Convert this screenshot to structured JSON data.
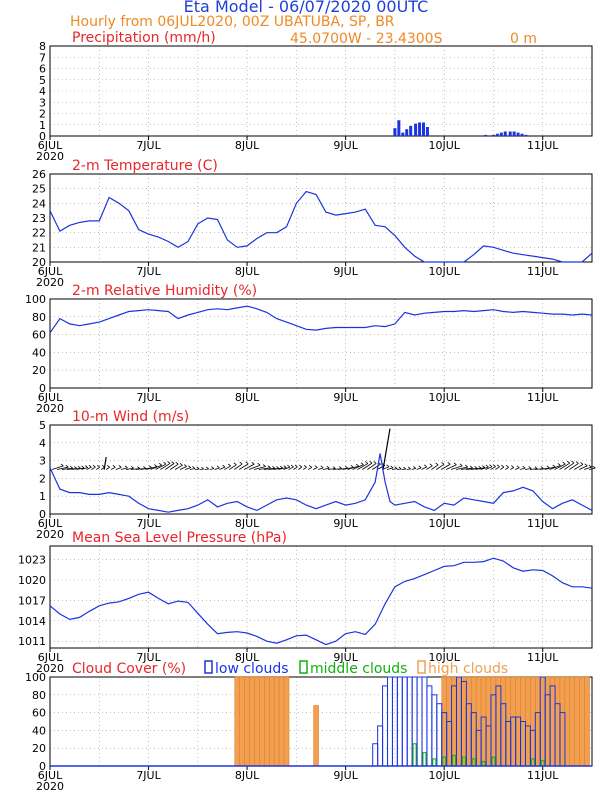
{
  "header": {
    "title": "Eta Model - 06/07/2020 00UTC",
    "subtitle": "Hourly from 06JUL2020, 00Z  UBATUBA, SP, BR",
    "coords": "45.0700W - 23.4300S",
    "elevation": "0  m"
  },
  "colors": {
    "title": "#1f3fdc",
    "orange": "#f08a24",
    "red": "#e8262b",
    "blue": "#1a35e0",
    "green": "#10b010",
    "cloud_orange": "#f0a050",
    "black": "#000000"
  },
  "xaxis": {
    "ticks": [
      {
        "day": 0,
        "label": "6JUL"
      },
      {
        "day": 1,
        "label": "7JUL"
      },
      {
        "day": 2,
        "label": "8JUL"
      },
      {
        "day": 3,
        "label": "9JUL"
      },
      {
        "day": 4,
        "label": "10JUL"
      },
      {
        "day": 5,
        "label": "11JUL"
      }
    ],
    "year": "2020",
    "range": [
      0,
      5.5
    ]
  },
  "chart_data": [
    {
      "type": "bar",
      "title": "Precipitation (mm/h)",
      "ylim": [
        0,
        8
      ],
      "yticks": [
        0,
        1,
        2,
        3,
        4,
        5,
        6,
        7,
        8
      ],
      "x": [
        3.5,
        3.54,
        3.58,
        3.62,
        3.66,
        3.71,
        3.75,
        3.79,
        3.83,
        4.42,
        4.5,
        4.54,
        4.58,
        4.62,
        4.67,
        4.71,
        4.75,
        4.79,
        4.83
      ],
      "values": [
        0.7,
        1.4,
        0.3,
        0.6,
        0.9,
        1.1,
        1.2,
        1.2,
        0.8,
        0.1,
        0.1,
        0.2,
        0.3,
        0.4,
        0.4,
        0.4,
        0.3,
        0.2,
        0.1
      ]
    },
    {
      "type": "line",
      "title": "2-m Temperature (C)",
      "ylim": [
        20,
        26
      ],
      "yticks": [
        20,
        21,
        22,
        23,
        24,
        25,
        26
      ],
      "x": [
        0,
        0.1,
        0.2,
        0.3,
        0.4,
        0.5,
        0.6,
        0.7,
        0.8,
        0.9,
        1.0,
        1.1,
        1.2,
        1.3,
        1.4,
        1.5,
        1.6,
        1.7,
        1.8,
        1.9,
        2.0,
        2.1,
        2.2,
        2.3,
        2.4,
        2.5,
        2.6,
        2.7,
        2.8,
        2.9,
        3.0,
        3.1,
        3.2,
        3.3,
        3.4,
        3.5,
        3.6,
        3.7,
        3.8,
        3.9,
        4.0,
        4.1,
        4.2,
        4.3,
        4.4,
        4.5,
        4.6,
        4.7,
        4.8,
        4.9,
        5.0,
        5.1,
        5.2,
        5.3,
        5.4,
        5.5
      ],
      "values": [
        23.5,
        22.1,
        22.5,
        22.7,
        22.8,
        22.8,
        24.4,
        24.0,
        23.5,
        22.2,
        21.9,
        21.7,
        21.4,
        21.0,
        21.4,
        22.6,
        23.0,
        22.9,
        21.5,
        21.0,
        21.1,
        21.6,
        22.0,
        22.0,
        22.4,
        24.0,
        24.8,
        24.6,
        23.4,
        23.2,
        23.3,
        23.4,
        23.6,
        22.5,
        22.4,
        21.8,
        21.0,
        20.4,
        20.0,
        19.9,
        19.9,
        20.0,
        19.9,
        20.5,
        21.1,
        21.0,
        20.8,
        20.6,
        20.5,
        20.4,
        20.3,
        20.2,
        20.0,
        19.9,
        19.9,
        20.6
      ]
    },
    {
      "type": "line",
      "title": "2-m Relative Humidity (%)",
      "ylim": [
        0,
        100
      ],
      "yticks": [
        0,
        20,
        40,
        60,
        80,
        100
      ],
      "x": [
        0,
        0.1,
        0.2,
        0.3,
        0.4,
        0.5,
        0.6,
        0.7,
        0.8,
        0.9,
        1.0,
        1.1,
        1.2,
        1.3,
        1.4,
        1.5,
        1.6,
        1.7,
        1.8,
        1.9,
        2.0,
        2.1,
        2.2,
        2.3,
        2.4,
        2.5,
        2.6,
        2.7,
        2.8,
        2.9,
        3.0,
        3.1,
        3.2,
        3.3,
        3.4,
        3.5,
        3.6,
        3.7,
        3.8,
        3.9,
        4.0,
        4.1,
        4.2,
        4.3,
        4.4,
        4.5,
        4.6,
        4.7,
        4.8,
        4.9,
        5.0,
        5.1,
        5.2,
        5.3,
        5.4,
        5.5
      ],
      "values": [
        62,
        78,
        72,
        70,
        72,
        74,
        78,
        82,
        86,
        87,
        88,
        87,
        86,
        78,
        82,
        85,
        88,
        89,
        88,
        90,
        92,
        89,
        85,
        78,
        74,
        70,
        66,
        65,
        67,
        68,
        68,
        68,
        68,
        70,
        69,
        72,
        85,
        82,
        84,
        85,
        86,
        86,
        87,
        86,
        87,
        88,
        86,
        85,
        86,
        85,
        84,
        83,
        83,
        82,
        83,
        82
      ]
    },
    {
      "type": "line",
      "title": "10-m Wind (m/s)",
      "ylim": [
        0,
        5
      ],
      "yticks": [
        0,
        1,
        2,
        3,
        4,
        5
      ],
      "x": [
        0,
        0.1,
        0.2,
        0.3,
        0.4,
        0.5,
        0.6,
        0.7,
        0.8,
        0.9,
        1.0,
        1.1,
        1.2,
        1.3,
        1.4,
        1.5,
        1.6,
        1.7,
        1.8,
        1.9,
        2.0,
        2.1,
        2.2,
        2.3,
        2.4,
        2.5,
        2.6,
        2.7,
        2.8,
        2.9,
        3.0,
        3.1,
        3.2,
        3.3,
        3.35,
        3.4,
        3.45,
        3.5,
        3.6,
        3.7,
        3.8,
        3.9,
        4.0,
        4.1,
        4.2,
        4.3,
        4.4,
        4.5,
        4.6,
        4.7,
        4.8,
        4.9,
        5.0,
        5.1,
        5.2,
        5.3,
        5.4,
        5.5
      ],
      "values": [
        2.6,
        1.4,
        1.2,
        1.2,
        1.1,
        1.1,
        1.2,
        1.1,
        1.0,
        0.6,
        0.3,
        0.2,
        0.1,
        0.2,
        0.3,
        0.5,
        0.8,
        0.4,
        0.6,
        0.7,
        0.4,
        0.2,
        0.5,
        0.8,
        0.9,
        0.8,
        0.5,
        0.3,
        0.5,
        0.7,
        0.5,
        0.6,
        0.8,
        1.8,
        3.4,
        1.8,
        0.7,
        0.5,
        0.6,
        0.7,
        0.4,
        0.2,
        0.6,
        0.5,
        0.9,
        0.8,
        0.7,
        0.6,
        1.2,
        1.3,
        1.5,
        1.3,
        0.7,
        0.3,
        0.6,
        0.8,
        0.5,
        0.2
      ],
      "vector_base": 2.5
    },
    {
      "type": "line",
      "title": "Mean Sea Level Pressure (hPa)",
      "ylim": [
        1010,
        1025
      ],
      "yticks": [
        1011,
        1014,
        1017,
        1020,
        1023
      ],
      "x": [
        0,
        0.1,
        0.2,
        0.3,
        0.4,
        0.5,
        0.6,
        0.7,
        0.8,
        0.9,
        1.0,
        1.1,
        1.2,
        1.3,
        1.4,
        1.5,
        1.6,
        1.7,
        1.8,
        1.9,
        2.0,
        2.1,
        2.2,
        2.3,
        2.4,
        2.5,
        2.6,
        2.7,
        2.8,
        2.9,
        3.0,
        3.1,
        3.2,
        3.3,
        3.4,
        3.5,
        3.6,
        3.7,
        3.8,
        3.9,
        4.0,
        4.1,
        4.2,
        4.3,
        4.4,
        4.5,
        4.6,
        4.7,
        4.8,
        4.9,
        5.0,
        5.1,
        5.2,
        5.3,
        5.4,
        5.5
      ],
      "values": [
        1016.2,
        1015.0,
        1014.2,
        1014.5,
        1015.4,
        1016.2,
        1016.6,
        1016.8,
        1017.3,
        1017.9,
        1018.2,
        1017.3,
        1016.5,
        1016.9,
        1016.7,
        1015.1,
        1013.5,
        1012.1,
        1012.3,
        1012.4,
        1012.2,
        1011.7,
        1011.0,
        1010.7,
        1011.2,
        1011.8,
        1011.9,
        1011.2,
        1010.5,
        1011.0,
        1012.1,
        1012.4,
        1012.0,
        1013.5,
        1016.5,
        1019.0,
        1019.8,
        1020.2,
        1020.8,
        1021.4,
        1022.0,
        1022.1,
        1022.6,
        1022.6,
        1022.7,
        1023.2,
        1022.8,
        1021.8,
        1021.3,
        1021.5,
        1021.4,
        1020.6,
        1019.6,
        1019.0,
        1019.0,
        1018.8
      ]
    },
    {
      "type": "bar",
      "title": "Cloud Cover (%)",
      "ylim": [
        0,
        100
      ],
      "yticks": [
        0,
        20,
        40,
        60,
        80,
        100
      ],
      "legend": [
        "low clouds",
        "middle clouds",
        "high clouds"
      ],
      "series": [
        {
          "name": "low clouds",
          "x": [
            3.3,
            3.35,
            3.4,
            3.45,
            3.5,
            3.55,
            3.6,
            3.65,
            3.7,
            3.75,
            3.8,
            3.85,
            3.9,
            3.95,
            4.0,
            4.05,
            4.1,
            4.15,
            4.2,
            4.25,
            4.3,
            4.35,
            4.4,
            4.45,
            4.5,
            4.55,
            4.6,
            4.65,
            4.7,
            4.75,
            4.8,
            4.85,
            4.9,
            4.95,
            5.0,
            5.05,
            5.1,
            5.15,
            5.2
          ],
          "values": [
            25,
            45,
            90,
            100,
            100,
            100,
            100,
            100,
            100,
            100,
            100,
            90,
            80,
            70,
            60,
            50,
            90,
            100,
            95,
            70,
            60,
            40,
            55,
            45,
            80,
            90,
            70,
            50,
            55,
            55,
            50,
            45,
            40,
            60,
            100,
            80,
            90,
            70,
            60
          ]
        },
        {
          "name": "middle clouds",
          "x": [
            3.7,
            3.8,
            3.9,
            4.0,
            4.1,
            4.2,
            4.3,
            4.4,
            4.5,
            4.9,
            5.0
          ],
          "values": [
            25,
            15,
            8,
            10,
            12,
            10,
            8,
            5,
            10,
            8,
            6
          ]
        },
        {
          "name": "high clouds",
          "x": [
            1.9,
            1.95,
            2.0,
            2.05,
            2.1,
            2.15,
            2.2,
            2.25,
            2.3,
            2.35,
            2.4,
            2.7,
            4.0,
            4.05,
            4.1,
            4.15,
            4.2,
            4.25,
            4.3,
            4.35,
            4.4,
            4.45,
            4.5,
            4.55,
            4.6,
            4.65,
            4.7,
            4.75,
            4.8,
            4.85,
            4.9,
            4.95,
            5.0,
            5.05,
            5.1,
            5.15,
            5.2,
            5.25,
            5.3,
            5.35,
            5.4,
            5.45
          ],
          "values": [
            100,
            100,
            100,
            100,
            100,
            100,
            100,
            100,
            100,
            100,
            100,
            68,
            100,
            100,
            100,
            100,
            100,
            100,
            100,
            100,
            100,
            100,
            100,
            100,
            100,
            100,
            100,
            100,
            100,
            100,
            100,
            100,
            100,
            100,
            100,
            100,
            100,
            100,
            100,
            100,
            100,
            100
          ]
        }
      ]
    }
  ]
}
